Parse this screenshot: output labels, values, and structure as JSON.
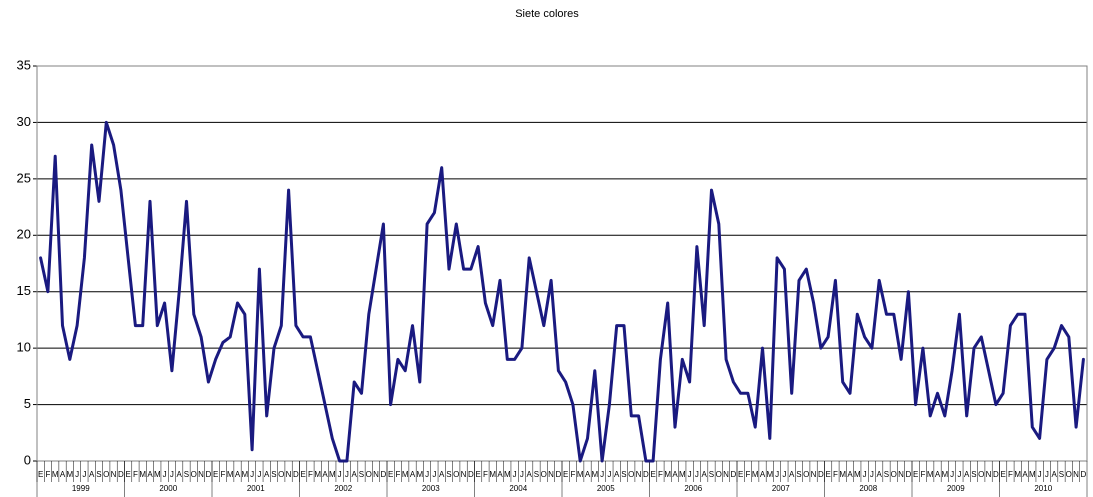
{
  "chart_data": {
    "type": "line",
    "title": "Siete colores",
    "categories": [
      "E",
      "F",
      "M",
      "A",
      "M",
      "J",
      "J",
      "A",
      "S",
      "O",
      "N",
      "D",
      "E",
      "F",
      "M",
      "A",
      "M",
      "J",
      "J",
      "A",
      "S",
      "O",
      "N",
      "D",
      "E",
      "F",
      "M",
      "A",
      "M",
      "J",
      "J",
      "A",
      "S",
      "O",
      "N",
      "D",
      "E",
      "F",
      "M",
      "A",
      "M",
      "J",
      "J",
      "A",
      "S",
      "O",
      "N",
      "D",
      "E",
      "F",
      "M",
      "A",
      "M",
      "J",
      "J",
      "A",
      "S",
      "O",
      "N",
      "D",
      "E",
      "F",
      "M",
      "A",
      "M",
      "J",
      "J",
      "A",
      "S",
      "O",
      "N",
      "D",
      "E",
      "F",
      "M",
      "A",
      "M",
      "J",
      "J",
      "A",
      "S",
      "O",
      "N",
      "D",
      "E",
      "F",
      "M",
      "A",
      "M",
      "J",
      "J",
      "A",
      "S",
      "O",
      "N",
      "D",
      "E",
      "F",
      "M",
      "A",
      "M",
      "J",
      "J",
      "A",
      "S",
      "O",
      "N",
      "D",
      "E",
      "F",
      "M",
      "A",
      "M",
      "J",
      "J",
      "A",
      "S",
      "O",
      "N",
      "D",
      "E",
      "F",
      "M",
      "A",
      "M",
      "J",
      "J",
      "A",
      "S",
      "O",
      "N",
      "D",
      "E",
      "F",
      "M",
      "A",
      "M",
      "J",
      "J",
      "A",
      "S",
      "O",
      "N",
      "D"
    ],
    "year_labels": [
      "1999",
      "2000",
      "2001",
      "2002",
      "2003",
      "2004",
      "2005",
      "2006",
      "2007",
      "2008",
      "2009",
      "2010"
    ],
    "series": [
      {
        "color": "#1a1a80",
        "values": [
          18,
          15,
          27,
          12,
          9,
          12,
          18,
          28,
          23,
          30,
          28,
          24,
          18,
          12,
          12,
          23,
          12,
          14,
          8,
          15,
          23,
          13,
          11,
          7,
          9,
          10.5,
          11,
          14,
          13,
          1,
          17,
          4,
          10,
          12,
          24,
          12,
          11,
          11,
          8,
          5,
          2,
          0,
          0,
          7,
          6,
          13,
          17,
          21,
          5,
          9,
          8,
          12,
          7,
          21,
          22,
          26,
          17,
          21,
          17,
          17,
          19,
          14,
          12,
          16,
          9,
          9,
          10,
          18,
          15,
          12,
          16,
          8,
          7,
          5,
          0,
          2,
          8,
          0,
          5,
          12,
          12,
          4,
          4,
          0,
          0,
          9,
          14,
          3,
          9,
          7,
          19,
          12,
          24,
          21,
          9,
          7,
          6,
          6,
          3,
          10,
          2,
          18,
          17,
          6,
          16,
          17,
          14,
          10,
          11,
          16,
          7,
          6,
          13,
          11,
          10,
          16,
          13,
          13,
          9,
          15,
          5,
          10,
          4,
          6,
          4,
          8,
          13,
          4,
          10,
          11,
          8,
          5,
          6,
          12,
          13,
          13,
          3,
          2,
          9,
          10,
          12,
          11,
          3,
          9
        ]
      }
    ],
    "ylim": [
      0,
      35
    ],
    "yticks": [
      0,
      5,
      10,
      15,
      20,
      25,
      30,
      35
    ],
    "grid": true
  }
}
